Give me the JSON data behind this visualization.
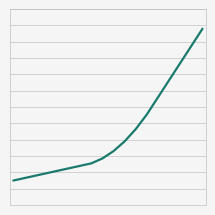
{
  "x": [
    0,
    1,
    2,
    3,
    4,
    5,
    6,
    7,
    8,
    9,
    10,
    11,
    12,
    13,
    14,
    15,
    16,
    17
  ],
  "y": [
    10,
    11,
    12,
    13,
    14,
    15,
    16,
    17,
    19,
    22,
    26,
    31,
    37,
    44,
    51,
    58,
    65,
    72
  ],
  "line_color": "#1a7a6e",
  "line_width": 1.6,
  "background_color": "#f5f5f5",
  "grid_color": "#cccccc",
  "ylim": [
    0,
    80
  ],
  "xlim": [
    -0.3,
    17.3
  ],
  "num_gridlines": 13
}
